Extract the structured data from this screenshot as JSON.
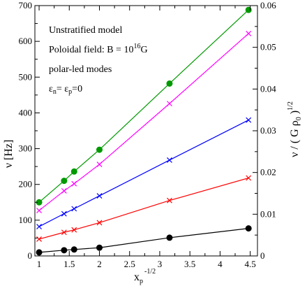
{
  "chart_data": {
    "type": "line",
    "annotations": {
      "line1": "Unstratified model",
      "line2_main": "Poloidal field: B = 10",
      "line2_sup": "16",
      "line2_unit": "G",
      "line3": "polar-led modes",
      "line4_eps1": "ε",
      "line4_sub1": "n",
      "line4_mid": "= ε",
      "line4_sub2": "p",
      "line4_end": "=0"
    },
    "xlabel": {
      "main": "x",
      "sub": "p",
      "sup": "-1/2"
    },
    "ylabel_left": "ν [Hz]",
    "ylabel_right": {
      "main": "ν / ( G ρ",
      "sub": "0",
      "close": " )",
      "sup": "1/2"
    },
    "xlim": [
      0.93,
      4.62
    ],
    "ylim_left": [
      0,
      700
    ],
    "ylim_right": [
      0,
      0.06
    ],
    "xticks": [
      {
        "v": 1,
        "label": "1"
      },
      {
        "v": 1.5,
        "label": "1.5"
      },
      {
        "v": 2,
        "label": "2"
      },
      {
        "v": 2.5,
        "label": "2.5"
      },
      {
        "v": 3,
        "label": "3"
      },
      {
        "v": 3.5,
        "label": "3.5"
      },
      {
        "v": 4,
        "label": "4"
      },
      {
        "v": 4.5,
        "label": "4.5"
      }
    ],
    "yticks_left": [
      {
        "v": 0,
        "label": "0"
      },
      {
        "v": 100,
        "label": "100"
      },
      {
        "v": 200,
        "label": "200"
      },
      {
        "v": 300,
        "label": "300"
      },
      {
        "v": 400,
        "label": "400"
      },
      {
        "v": 500,
        "label": "500"
      },
      {
        "v": 600,
        "label": "600"
      },
      {
        "v": 700,
        "label": "700"
      }
    ],
    "yticks_right": [
      {
        "v": 0,
        "label": "0"
      },
      {
        "v": 0.01,
        "label": "0.01"
      },
      {
        "v": 0.02,
        "label": "0.02"
      },
      {
        "v": 0.03,
        "label": "0.03"
      },
      {
        "v": 0.04,
        "label": "0.04"
      },
      {
        "v": 0.05,
        "label": "0.05"
      },
      {
        "v": 0.06,
        "label": "0.06"
      }
    ],
    "series": [
      {
        "color": "#009900",
        "marker": "circle",
        "x": [
          1,
          1.414,
          1.581,
          2,
          3.162,
          4.472
        ],
        "y": [
          150,
          210,
          236,
          297,
          482,
          688
        ]
      },
      {
        "color": "#ff00ff",
        "marker": "x",
        "x": [
          1,
          1.414,
          1.581,
          2,
          3.162,
          4.472
        ],
        "y": [
          127,
          182,
          202,
          256,
          426,
          622
        ]
      },
      {
        "color": "#0000ff",
        "marker": "x",
        "x": [
          1,
          1.414,
          1.581,
          2,
          3.162,
          4.472
        ],
        "y": [
          82,
          118,
          132,
          168,
          268,
          380
        ]
      },
      {
        "color": "#ff0000",
        "marker": "x",
        "x": [
          1,
          1.414,
          1.581,
          2,
          3.162,
          4.472
        ],
        "y": [
          47,
          66,
          73,
          93,
          155,
          218
        ]
      },
      {
        "color": "#000000",
        "marker": "circle",
        "x": [
          1,
          1.414,
          1.581,
          2,
          3.162,
          4.472
        ],
        "y": [
          10,
          16,
          18,
          23,
          51,
          77
        ]
      }
    ],
    "grid": false
  }
}
